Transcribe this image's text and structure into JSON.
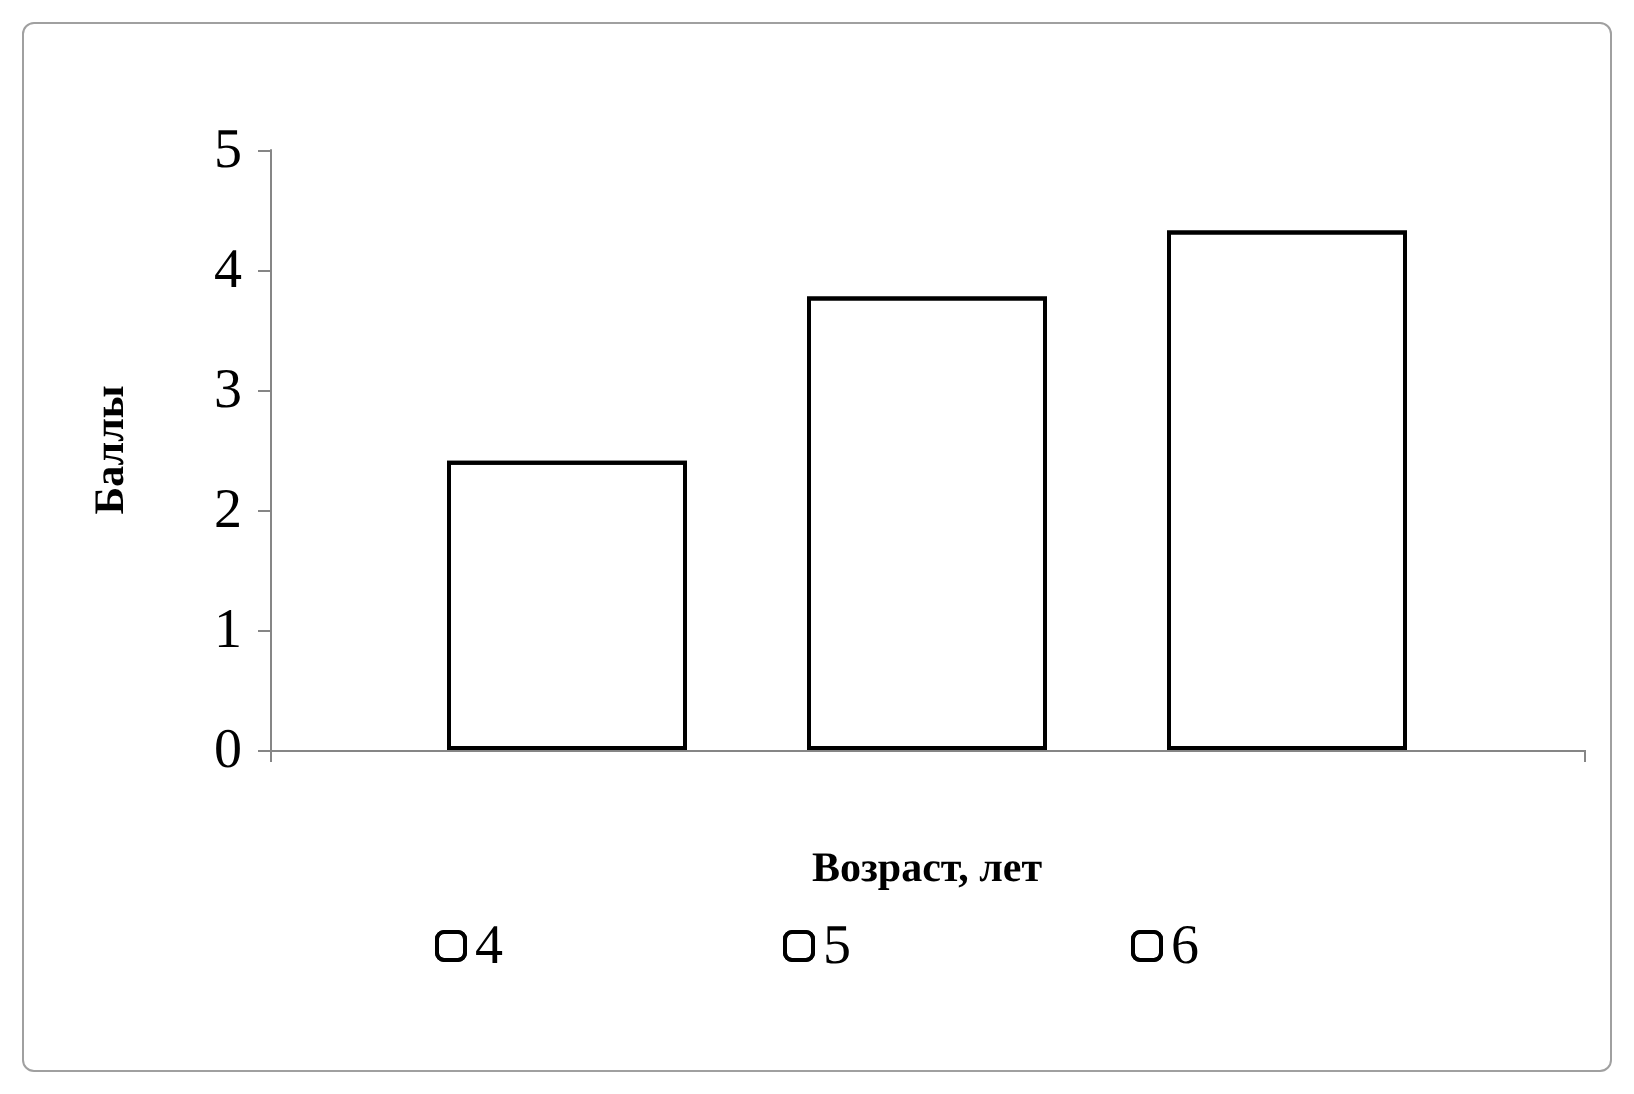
{
  "chart_data": {
    "type": "bar",
    "xlabel": "Возраст, лет",
    "ylabel": "Баллы",
    "categories": [
      null
    ],
    "series": [
      {
        "name": "4",
        "color": "#ffffff",
        "values": [
          2.41
        ]
      },
      {
        "name": "5",
        "color": "#ffffff",
        "values": [
          3.78
        ]
      },
      {
        "name": "6",
        "color": "#ffffff",
        "values": [
          4.33
        ]
      }
    ],
    "ylim": [
      0,
      5
    ],
    "yticks": [
      0,
      1,
      2,
      3,
      4,
      5
    ],
    "grid": false,
    "legend": "bottom"
  }
}
